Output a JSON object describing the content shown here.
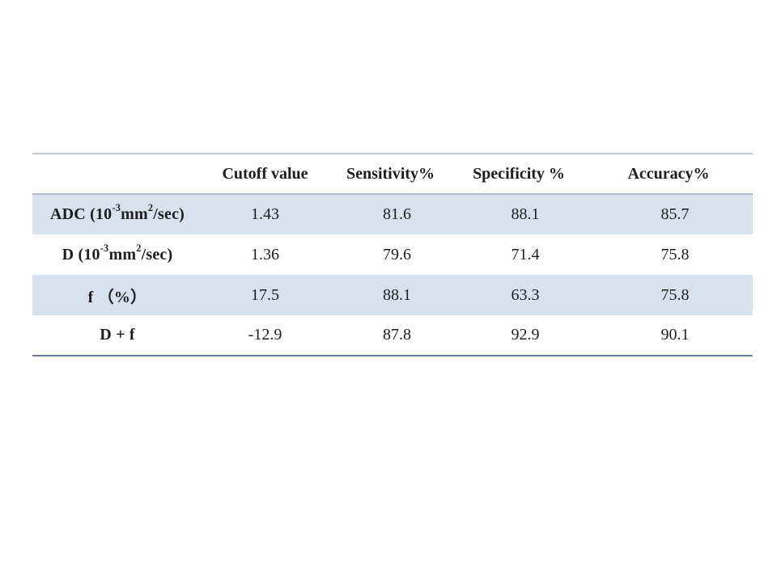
{
  "theme": {
    "page_bg": "#ffffff",
    "band_fill": "#d8e2ef",
    "border_top": "#b7c9da",
    "border_header": "#a9bed5",
    "border_bottom": "#647e9c",
    "text": "#1d1d1f"
  },
  "table": {
    "columns": [
      "",
      "Cutoff value",
      "Sensitivity%",
      "Specificity %",
      "Accuracy%"
    ],
    "rows": [
      {
        "label_parts": [
          "ADC (10",
          "-3",
          "mm",
          "2",
          "/sec)"
        ],
        "values": [
          "1.43",
          "81.6",
          "88.1",
          "85.7"
        ]
      },
      {
        "label_parts": [
          "D (10",
          "-3",
          "mm",
          "2",
          "/sec)"
        ],
        "values": [
          "1.36",
          "79.6",
          "71.4",
          "75.8"
        ]
      },
      {
        "label_parts": [
          "f （%）"
        ],
        "values": [
          "17.5",
          "88.1",
          "63.3",
          "75.8"
        ]
      },
      {
        "label_parts": [
          "D + f"
        ],
        "values": [
          "-12.9",
          "87.8",
          "92.9",
          "90.1"
        ]
      }
    ]
  },
  "chart_data": {
    "type": "table",
    "columns": [
      "",
      "Cutoff value",
      "Sensitivity%",
      "Specificity %",
      "Accuracy%"
    ],
    "rows": [
      [
        "ADC (10^-3 mm^2/sec)",
        1.43,
        81.6,
        88.1,
        85.7
      ],
      [
        "D (10^-3 mm^2/sec)",
        1.36,
        79.6,
        71.4,
        75.8
      ],
      [
        "f (%)",
        17.5,
        88.1,
        63.3,
        75.8
      ],
      [
        "D + f",
        -12.9,
        87.8,
        92.9,
        90.1
      ]
    ]
  }
}
